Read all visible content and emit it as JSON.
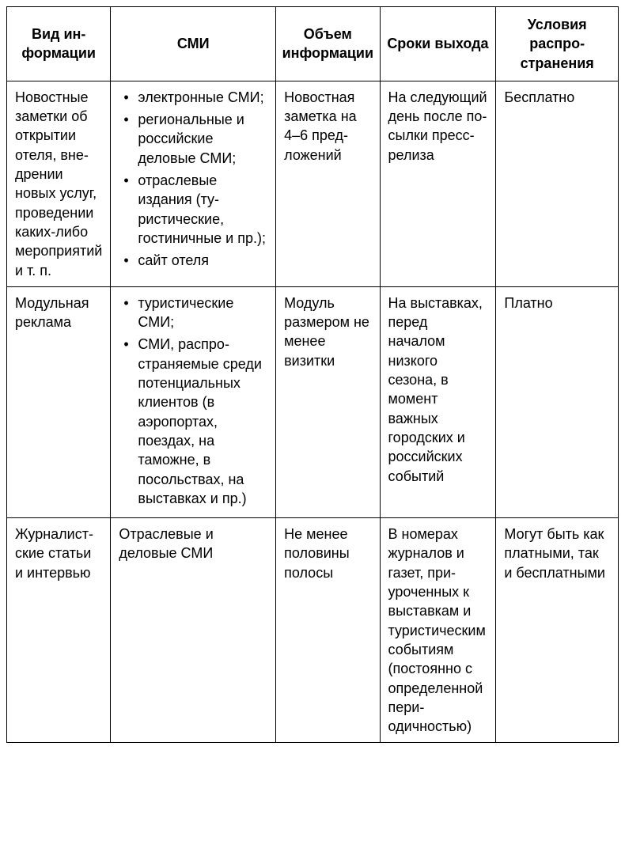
{
  "table": {
    "type": "table",
    "border_color": "#000000",
    "background_color": "#ffffff",
    "text_color": "#000000",
    "font_family": "Arial",
    "header_fontsize": 18,
    "cell_fontsize": 18,
    "column_widths_pct": [
      17,
      27,
      17,
      19,
      20
    ],
    "columns": [
      "Вид ин­формации",
      "СМИ",
      "Объем инфор­мации",
      "Сроки вы­хода",
      "Условия распро­странения"
    ],
    "rows": [
      {
        "info_type": "Новостные заметки об открытии отеля, вне­дрении новых ус­луг, прове­дении ка­ких-либо мероприя­тий и т. п.",
        "media_list": [
          "электронные СМИ;",
          "региональные и российские деловые СМИ;",
          "отраслевые издания (ту­ристические, гостиничные и пр.);",
          "сайт отеля"
        ],
        "volume": "Новостная заметка на 4–6 пред­ложений",
        "timing": "На следу­ющий день после по­сылки пресс-релиза",
        "conditions": "Бесплатно"
      },
      {
        "info_type": "Модульная реклама",
        "media_list": [
          "туристические СМИ;",
          "СМИ, распро­страняемые среди потен­циальных клиентов (в аэропортах, поездах, на таможне, в посольствах, на выставках и пр.)"
        ],
        "volume": "Модуль размером не менее визитки",
        "timing": "На выстав­ках, перед началом низкого сезона, в момент важных городских и россий­ских собы­тий",
        "conditions": "Платно"
      },
      {
        "info_type": "Журналист­ские статьи и интервью",
        "media_text": "Отраслевые и деловые СМИ",
        "volume": "Не менее половины полосы",
        "timing": "В номерах журналов и газет, при­уроченных к выставкам и туристиче­ским событи­ям (постоян­но с опреде­ленной пери­одичностью)",
        "conditions": "Могут быть как платны­ми, так и бесплат­ными"
      }
    ]
  }
}
